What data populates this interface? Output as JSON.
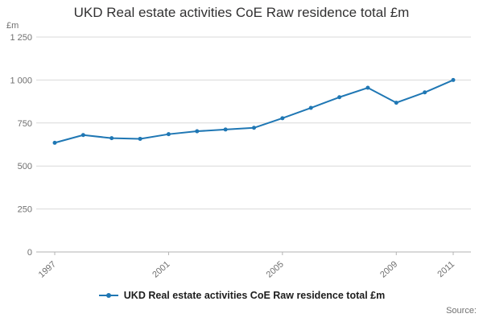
{
  "title": "UKD Real estate activities CoE Raw residence total £m",
  "y_axis_unit": "£m",
  "legend": {
    "label": "UKD Real estate activities CoE Raw residence total £m"
  },
  "source": {
    "label": "Source:"
  },
  "colors": {
    "line": "#1f77b4",
    "grid": "#d9d9d9",
    "axis": "#b3b3b3",
    "tick_text": "#6f6f6f"
  },
  "chart_data": {
    "type": "line",
    "title": "UKD Real estate activities CoE Raw residence total £m",
    "xlabel": "",
    "ylabel": "£m",
    "grid": true,
    "legend_position": "bottom",
    "ylim": [
      0,
      1250
    ],
    "y_ticks": [
      0,
      250,
      500,
      750,
      1000,
      1250
    ],
    "y_tick_labels": [
      "0",
      "250",
      "500",
      "750",
      "1 000",
      "1 250"
    ],
    "x_tick_years": [
      1997,
      2001,
      2005,
      2009,
      2011
    ],
    "x_tick_labels": [
      "1997",
      "2001",
      "2005",
      "2009",
      "2011"
    ],
    "x": [
      1997,
      1998,
      1999,
      2000,
      2001,
      2002,
      2003,
      2004,
      2005,
      2006,
      2007,
      2008,
      2009,
      2010,
      2011
    ],
    "series": [
      {
        "name": "UKD Real estate activities CoE Raw residence total £m",
        "values": [
          635,
          680,
          662,
          658,
          685,
          702,
          712,
          722,
          778,
          838,
          900,
          955,
          868,
          928,
          1000
        ]
      }
    ]
  }
}
